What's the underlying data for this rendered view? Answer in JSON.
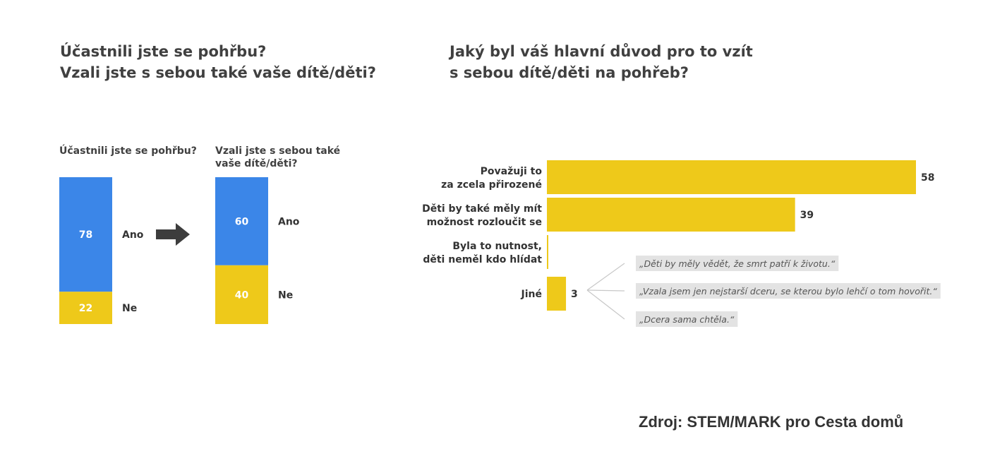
{
  "left": {
    "title_line1": "Účastnili jste se pohřbu?",
    "title_line2": "Vzali jste s sebou také vaše dítě/děti?"
  },
  "right": {
    "title_line1": "Jaký byl váš hlavní důvod pro to vzít",
    "title_line2": "s sebou dítě/děti na pohřeb?"
  },
  "source": "Zdroj: STEM/MARK pro Cesta domů",
  "colors": {
    "blue": "#3b86e8",
    "yellow": "#eec91a",
    "arrow": "#3d3d3d",
    "quote_bg": "#e3e3e3"
  },
  "chart_data": [
    {
      "type": "bar",
      "stacked": true,
      "title": "Účastnili jste se pohřbu?",
      "segments": [
        {
          "name": "Ano",
          "value": 78,
          "color": "#3b86e8"
        },
        {
          "name": "Ne",
          "value": 22,
          "color": "#eec91a"
        }
      ]
    },
    {
      "type": "bar",
      "stacked": true,
      "title_line1": "Vzali jste s sebou také",
      "title_line2": "vaše dítě/děti?",
      "segments": [
        {
          "name": "Ano",
          "value": 60,
          "color": "#3b86e8"
        },
        {
          "name": "Ne",
          "value": 40,
          "color": "#eec91a"
        }
      ]
    },
    {
      "type": "bar",
      "orientation": "horizontal",
      "bars": [
        {
          "label_line1": "Považuji to",
          "label_line2": "za zcela přirozené",
          "value": 58,
          "value_label": "58"
        },
        {
          "label_line1": "Děti by také měly mít",
          "label_line2": "možnost rozloučit se",
          "value": 39,
          "value_label": "39"
        },
        {
          "label_line1": "Byla to nutnost,",
          "label_line2": "děti neměl kdo hlídat",
          "value": 0,
          "value_label": ""
        },
        {
          "label_line1": "Jiné",
          "label_line2": "",
          "value": 3,
          "value_label": "3"
        }
      ],
      "annotations": [
        "„Děti by měly vědět, že smrt patří k životu.“",
        "„Vzala jsem jen nejstarší dceru, se kterou bylo lehčí o tom hovořit.“",
        "„Dcera sama chtěla.“"
      ]
    }
  ]
}
